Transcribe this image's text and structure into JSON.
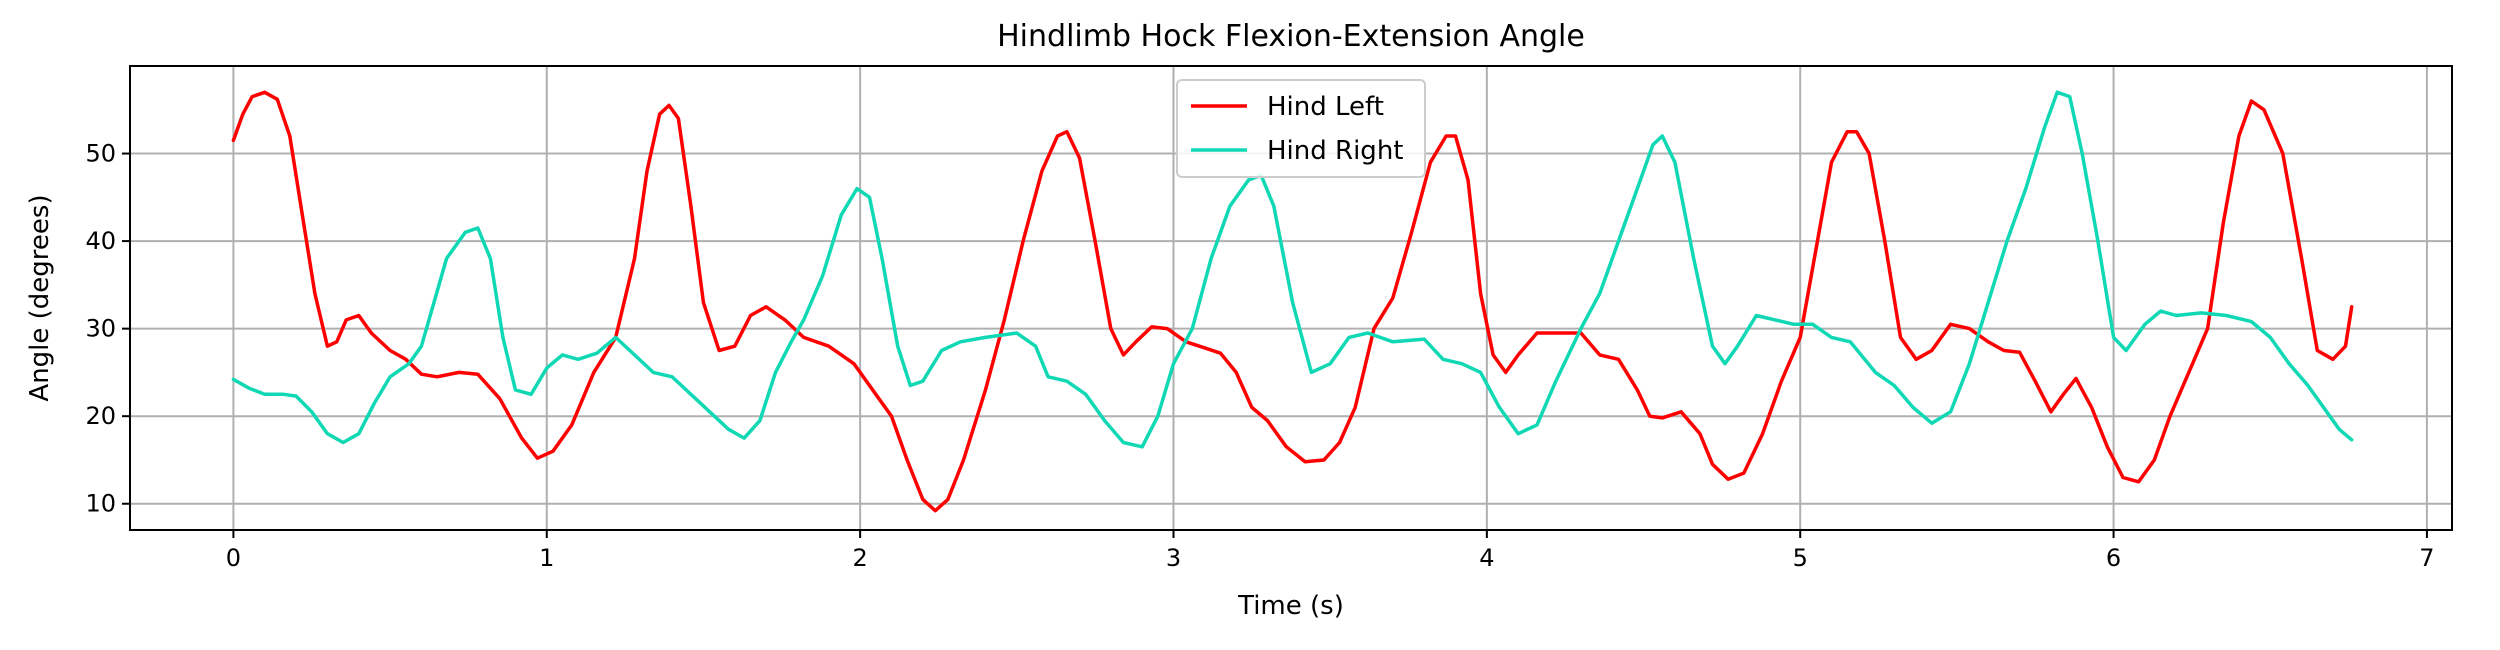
{
  "chart_data": {
    "type": "line",
    "title": "Hindlimb Hock Flexion-Extension Angle",
    "xlabel": "Time (s)",
    "ylabel": "Angle (degrees)",
    "xlim": [
      -0.33,
      7.08
    ],
    "ylim": [
      7,
      60
    ],
    "xticks": [
      0,
      1,
      2,
      3,
      4,
      5,
      6,
      7
    ],
    "yticks": [
      10,
      20,
      30,
      40,
      50
    ],
    "grid": true,
    "legend": "top-center",
    "series": [
      {
        "name": "Hind Left",
        "color": "#ff0000",
        "points": [
          [
            0.0,
            51.5
          ],
          [
            0.03,
            54.5
          ],
          [
            0.06,
            56.5
          ],
          [
            0.1,
            57.0
          ],
          [
            0.14,
            56.2
          ],
          [
            0.18,
            52.0
          ],
          [
            0.22,
            43.0
          ],
          [
            0.26,
            34.0
          ],
          [
            0.3,
            28.0
          ],
          [
            0.33,
            28.5
          ],
          [
            0.36,
            31.0
          ],
          [
            0.4,
            31.5
          ],
          [
            0.44,
            29.5
          ],
          [
            0.5,
            27.5
          ],
          [
            0.55,
            26.5
          ],
          [
            0.6,
            24.8
          ],
          [
            0.65,
            24.5
          ],
          [
            0.72,
            25.0
          ],
          [
            0.78,
            24.8
          ],
          [
            0.85,
            22.0
          ],
          [
            0.92,
            17.5
          ],
          [
            0.97,
            15.2
          ],
          [
            1.02,
            16.0
          ],
          [
            1.08,
            19.0
          ],
          [
            1.15,
            25.0
          ],
          [
            1.22,
            29.0
          ],
          [
            1.28,
            38.0
          ],
          [
            1.32,
            48.0
          ],
          [
            1.36,
            54.5
          ],
          [
            1.39,
            55.5
          ],
          [
            1.42,
            54.0
          ],
          [
            1.46,
            44.0
          ],
          [
            1.5,
            33.0
          ],
          [
            1.55,
            27.5
          ],
          [
            1.6,
            28.0
          ],
          [
            1.65,
            31.5
          ],
          [
            1.7,
            32.5
          ],
          [
            1.76,
            31.0
          ],
          [
            1.82,
            29.0
          ],
          [
            1.9,
            28.0
          ],
          [
            1.98,
            26.0
          ],
          [
            2.05,
            22.5
          ],
          [
            2.1,
            20.0
          ],
          [
            2.15,
            15.0
          ],
          [
            2.2,
            10.5
          ],
          [
            2.24,
            9.2
          ],
          [
            2.28,
            10.5
          ],
          [
            2.33,
            15.0
          ],
          [
            2.4,
            23.0
          ],
          [
            2.46,
            31.0
          ],
          [
            2.52,
            40.0
          ],
          [
            2.58,
            48.0
          ],
          [
            2.63,
            52.0
          ],
          [
            2.66,
            52.5
          ],
          [
            2.7,
            49.5
          ],
          [
            2.75,
            40.0
          ],
          [
            2.8,
            30.0
          ],
          [
            2.84,
            27.0
          ],
          [
            2.88,
            28.5
          ],
          [
            2.93,
            30.2
          ],
          [
            2.98,
            30.0
          ],
          [
            3.04,
            28.5
          ],
          [
            3.1,
            27.8
          ],
          [
            3.15,
            27.2
          ],
          [
            3.2,
            25.0
          ],
          [
            3.25,
            21.0
          ],
          [
            3.3,
            19.5
          ],
          [
            3.36,
            16.5
          ],
          [
            3.42,
            14.8
          ],
          [
            3.48,
            15.0
          ],
          [
            3.53,
            17.0
          ],
          [
            3.58,
            21.0
          ],
          [
            3.64,
            30.0
          ],
          [
            3.7,
            33.5
          ],
          [
            3.76,
            41.0
          ],
          [
            3.82,
            49.0
          ],
          [
            3.87,
            52.0
          ],
          [
            3.9,
            52.0
          ],
          [
            3.94,
            47.0
          ],
          [
            3.98,
            34.0
          ],
          [
            4.02,
            27.0
          ],
          [
            4.06,
            25.0
          ],
          [
            4.1,
            27.0
          ],
          [
            4.16,
            29.5
          ],
          [
            4.22,
            29.5
          ],
          [
            4.3,
            29.5
          ],
          [
            4.36,
            27.0
          ],
          [
            4.42,
            26.5
          ],
          [
            4.48,
            23.0
          ],
          [
            4.52,
            20.0
          ],
          [
            4.56,
            19.8
          ],
          [
            4.62,
            20.5
          ],
          [
            4.68,
            18.0
          ],
          [
            4.72,
            14.5
          ],
          [
            4.77,
            12.8
          ],
          [
            4.82,
            13.5
          ],
          [
            4.88,
            18.0
          ],
          [
            4.94,
            24.0
          ],
          [
            5.0,
            29.0
          ],
          [
            5.05,
            39.0
          ],
          [
            5.1,
            49.0
          ],
          [
            5.15,
            52.5
          ],
          [
            5.18,
            52.5
          ],
          [
            5.22,
            50.0
          ],
          [
            5.27,
            40.0
          ],
          [
            5.32,
            29.0
          ],
          [
            5.37,
            26.5
          ],
          [
            5.42,
            27.5
          ],
          [
            5.48,
            30.5
          ],
          [
            5.54,
            30.0
          ],
          [
            5.6,
            28.5
          ],
          [
            5.65,
            27.5
          ],
          [
            5.7,
            27.3
          ],
          [
            5.75,
            24.0
          ],
          [
            5.8,
            20.5
          ],
          [
            5.84,
            22.5
          ],
          [
            5.88,
            24.3
          ],
          [
            5.93,
            21.0
          ],
          [
            5.98,
            16.5
          ],
          [
            6.03,
            13.0
          ],
          [
            6.08,
            12.5
          ],
          [
            6.13,
            15.0
          ],
          [
            6.18,
            20.0
          ],
          [
            6.24,
            25.0
          ],
          [
            6.3,
            30.0
          ],
          [
            6.35,
            42.0
          ],
          [
            6.4,
            52.0
          ],
          [
            6.44,
            56.0
          ],
          [
            6.48,
            55.0
          ],
          [
            6.54,
            50.0
          ],
          [
            6.6,
            38.0
          ],
          [
            6.65,
            27.5
          ],
          [
            6.7,
            26.5
          ],
          [
            6.74,
            28.0
          ],
          [
            6.76,
            32.5
          ]
        ]
      },
      {
        "name": "Hind Right",
        "color": "#10d8b4",
        "points": [
          [
            0.0,
            24.2
          ],
          [
            0.05,
            23.2
          ],
          [
            0.1,
            22.5
          ],
          [
            0.16,
            22.5
          ],
          [
            0.2,
            22.3
          ],
          [
            0.25,
            20.5
          ],
          [
            0.3,
            18.0
          ],
          [
            0.35,
            17.0
          ],
          [
            0.4,
            18.0
          ],
          [
            0.45,
            21.5
          ],
          [
            0.5,
            24.5
          ],
          [
            0.56,
            26.0
          ],
          [
            0.6,
            28.0
          ],
          [
            0.64,
            33.0
          ],
          [
            0.68,
            38.0
          ],
          [
            0.74,
            41.0
          ],
          [
            0.78,
            41.5
          ],
          [
            0.82,
            38.0
          ],
          [
            0.86,
            29.0
          ],
          [
            0.9,
            23.0
          ],
          [
            0.95,
            22.5
          ],
          [
            1.0,
            25.5
          ],
          [
            1.05,
            27.0
          ],
          [
            1.1,
            26.5
          ],
          [
            1.16,
            27.2
          ],
          [
            1.22,
            29.0
          ],
          [
            1.28,
            27.0
          ],
          [
            1.34,
            25.0
          ],
          [
            1.4,
            24.5
          ],
          [
            1.46,
            22.5
          ],
          [
            1.52,
            20.5
          ],
          [
            1.58,
            18.5
          ],
          [
            1.63,
            17.5
          ],
          [
            1.68,
            19.5
          ],
          [
            1.73,
            25.0
          ],
          [
            1.78,
            28.5
          ],
          [
            1.82,
            31.0
          ],
          [
            1.88,
            36.0
          ],
          [
            1.94,
            43.0
          ],
          [
            1.99,
            46.0
          ],
          [
            2.03,
            45.0
          ],
          [
            2.07,
            38.0
          ],
          [
            2.12,
            28.0
          ],
          [
            2.16,
            23.5
          ],
          [
            2.2,
            24.0
          ],
          [
            2.26,
            27.5
          ],
          [
            2.32,
            28.5
          ],
          [
            2.4,
            29.0
          ],
          [
            2.5,
            29.5
          ],
          [
            2.56,
            28.0
          ],
          [
            2.6,
            24.5
          ],
          [
            2.66,
            24.0
          ],
          [
            2.72,
            22.5
          ],
          [
            2.78,
            19.5
          ],
          [
            2.84,
            17.0
          ],
          [
            2.9,
            16.5
          ],
          [
            2.95,
            20.0
          ],
          [
            3.0,
            26.0
          ],
          [
            3.06,
            30.0
          ],
          [
            3.12,
            38.0
          ],
          [
            3.18,
            44.0
          ],
          [
            3.24,
            47.0
          ],
          [
            3.28,
            47.5
          ],
          [
            3.32,
            44.0
          ],
          [
            3.38,
            33.0
          ],
          [
            3.44,
            25.0
          ],
          [
            3.5,
            26.0
          ],
          [
            3.56,
            29.0
          ],
          [
            3.62,
            29.5
          ],
          [
            3.7,
            28.5
          ],
          [
            3.8,
            28.8
          ],
          [
            3.86,
            26.5
          ],
          [
            3.92,
            26.0
          ],
          [
            3.98,
            25.0
          ],
          [
            4.04,
            21.0
          ],
          [
            4.1,
            18.0
          ],
          [
            4.16,
            19.0
          ],
          [
            4.22,
            24.0
          ],
          [
            4.3,
            30.0
          ],
          [
            4.36,
            34.0
          ],
          [
            4.42,
            40.0
          ],
          [
            4.48,
            46.0
          ],
          [
            4.53,
            51.0
          ],
          [
            4.56,
            52.0
          ],
          [
            4.6,
            49.0
          ],
          [
            4.66,
            38.0
          ],
          [
            4.72,
            28.0
          ],
          [
            4.76,
            26.0
          ],
          [
            4.8,
            28.0
          ],
          [
            4.86,
            31.5
          ],
          [
            4.92,
            31.0
          ],
          [
            4.98,
            30.5
          ],
          [
            5.04,
            30.5
          ],
          [
            5.1,
            29.0
          ],
          [
            5.16,
            28.5
          ],
          [
            5.24,
            25.0
          ],
          [
            5.3,
            23.5
          ],
          [
            5.36,
            21.0
          ],
          [
            5.42,
            19.2
          ],
          [
            5.48,
            20.5
          ],
          [
            5.54,
            26.0
          ],
          [
            5.6,
            33.0
          ],
          [
            5.66,
            40.0
          ],
          [
            5.72,
            46.0
          ],
          [
            5.78,
            53.0
          ],
          [
            5.82,
            57.0
          ],
          [
            5.86,
            56.5
          ],
          [
            5.9,
            50.0
          ],
          [
            5.95,
            40.0
          ],
          [
            6.0,
            29.0
          ],
          [
            6.04,
            27.5
          ],
          [
            6.1,
            30.5
          ],
          [
            6.15,
            32.0
          ],
          [
            6.2,
            31.5
          ],
          [
            6.28,
            31.8
          ],
          [
            6.36,
            31.5
          ],
          [
            6.44,
            30.8
          ],
          [
            6.5,
            29.0
          ],
          [
            6.56,
            26.0
          ],
          [
            6.62,
            23.5
          ],
          [
            6.68,
            20.5
          ],
          [
            6.72,
            18.5
          ],
          [
            6.76,
            17.3
          ]
        ]
      }
    ]
  }
}
